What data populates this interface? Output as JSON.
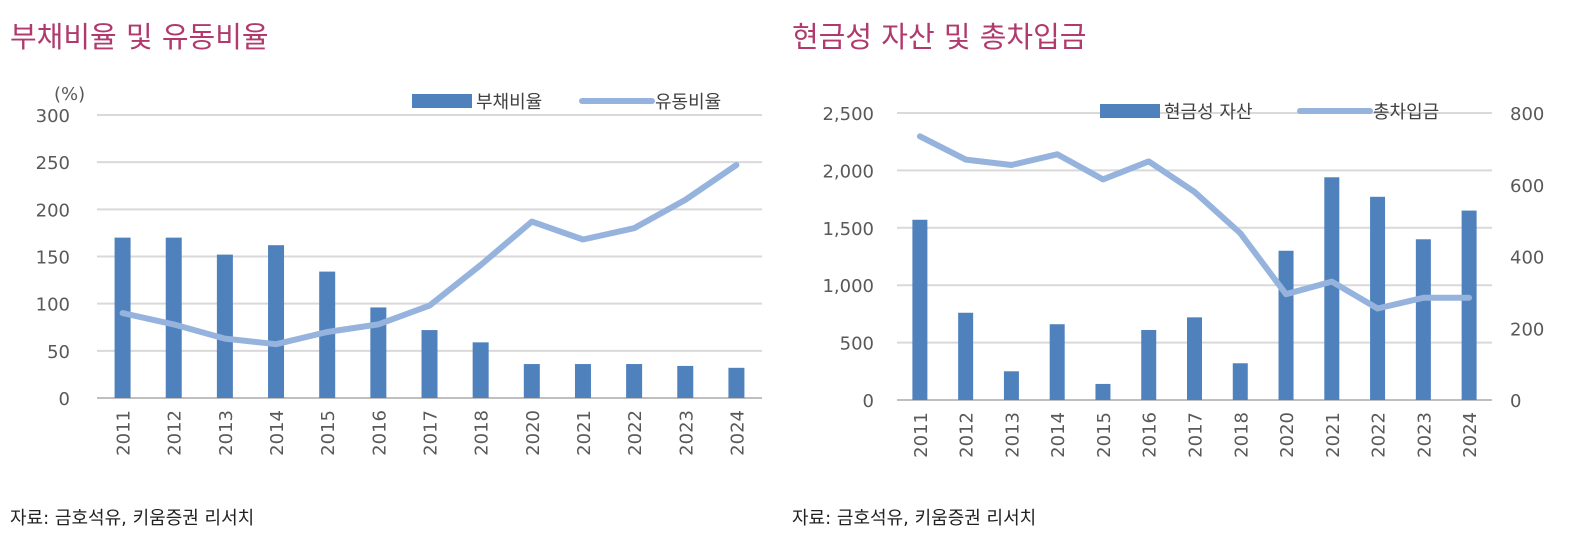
{
  "charts": {
    "left": {
      "title": "부채비율 및 유동비율",
      "source": "자료: 금호석유, 키움증권 리서치"
    },
    "right": {
      "title": "현금성 자산 및 총차입금",
      "source": "자료: 금호석유, 키움증권 리서치"
    }
  },
  "colors": {
    "bar": "#4f81bd",
    "line": "#95b3dd",
    "grid": "#d9d9d9",
    "axis": "#bfbfbf",
    "title": "#b03a6e"
  },
  "chart_data": [
    {
      "type": "bar+line",
      "title": "부채비율 및 유동비율",
      "unit_label": "(%)",
      "categories": [
        "2011",
        "2012",
        "2013",
        "2014",
        "2015",
        "2016",
        "2017",
        "2018",
        "2020",
        "2021",
        "2022",
        "2023",
        "2024"
      ],
      "series": [
        {
          "name": "부채비율",
          "type": "bar",
          "values": [
            170,
            170,
            152,
            162,
            134,
            96,
            72,
            59,
            36,
            36,
            36,
            34,
            32
          ]
        },
        {
          "name": "유동비율",
          "type": "line",
          "values": [
            90,
            78,
            63,
            57,
            70,
            78,
            98,
            141,
            187,
            168,
            180,
            210,
            247
          ]
        }
      ],
      "y_ticks": [
        "300",
        "250",
        "200",
        "150",
        "100",
        "50",
        "0"
      ],
      "ylim": [
        0,
        300
      ],
      "grid": true,
      "legend": "top-right"
    },
    {
      "type": "bar+line",
      "title": "현금성 자산 및 총차입금",
      "categories": [
        "2011",
        "2012",
        "2013",
        "2014",
        "2015",
        "2016",
        "2017",
        "2018",
        "2020",
        "2021",
        "2022",
        "2023",
        "2024"
      ],
      "series": [
        {
          "name": "현금성 자산",
          "type": "bar",
          "axis": "left",
          "values": [
            1570,
            760,
            250,
            660,
            140,
            610,
            720,
            320,
            1300,
            1940,
            1770,
            1400,
            1650
          ]
        },
        {
          "name": "총차입금",
          "type": "line",
          "axis": "right",
          "values": [
            735,
            670,
            655,
            685,
            615,
            665,
            580,
            465,
            295,
            330,
            255,
            285,
            285
          ]
        }
      ],
      "y_ticks_left": [
        "2,500",
        "2,000",
        "1,500",
        "1,000",
        "500",
        "0"
      ],
      "y_ticks_right": [
        "800",
        "600",
        "400",
        "200",
        "0"
      ],
      "ylim_left": [
        0,
        2500
      ],
      "ylim_right": [
        0,
        800
      ],
      "grid": true,
      "legend": "top-right"
    }
  ]
}
